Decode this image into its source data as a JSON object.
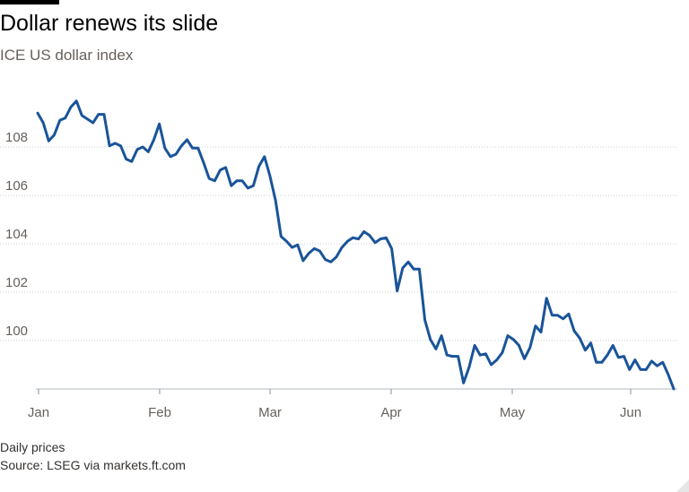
{
  "header": {
    "title": "Dollar renews its slide",
    "subtitle": "ICE US dollar index"
  },
  "footer": {
    "note": "Daily prices",
    "source": "Source: LSEG via markets.ft.com"
  },
  "colors": {
    "line": "#1a5499",
    "gridline": "#c9cfd8",
    "axis_text": "#66605c",
    "title": "#000000"
  },
  "chart_data": {
    "type": "line",
    "title": "Dollar renews its slide",
    "subtitle": "ICE US dollar index",
    "xlabel": "",
    "ylabel": "",
    "x_ticks": [
      "Jan",
      "Feb",
      "Mar",
      "Apr",
      "May",
      "Jun"
    ],
    "y_ticks": [
      100,
      102,
      104,
      106,
      108
    ],
    "ylim": [
      98,
      110
    ],
    "grid": true,
    "legend": "none",
    "series": [
      {
        "values": [
          109.4,
          109.0,
          108.25,
          108.5,
          109.1,
          109.2,
          109.65,
          109.9,
          109.3,
          109.15,
          109.0,
          109.35,
          109.35,
          108.05,
          108.15,
          108.05,
          107.5,
          107.4,
          107.9,
          108.0,
          107.8,
          108.3,
          108.95,
          107.95,
          107.6,
          107.7,
          108.05,
          108.3,
          107.95,
          107.95,
          107.35,
          106.7,
          106.6,
          107.05,
          107.15,
          106.4,
          106.6,
          106.6,
          106.3,
          106.4,
          107.2,
          107.6,
          106.8,
          105.8,
          104.3,
          104.1,
          103.85,
          103.95,
          103.3,
          103.6,
          103.8,
          103.7,
          103.35,
          103.25,
          103.45,
          103.85,
          104.1,
          104.25,
          104.2,
          104.5,
          104.35,
          104.05,
          104.2,
          104.25,
          103.8,
          102.05,
          103.0,
          103.25,
          102.95,
          102.95,
          100.85,
          100.05,
          99.65,
          100.2,
          99.4,
          99.35,
          99.35,
          98.25,
          98.9,
          99.8,
          99.4,
          99.45,
          99.0,
          99.2,
          99.5,
          100.2,
          100.05,
          99.8,
          99.25,
          99.7,
          100.6,
          100.35,
          101.75,
          101.05,
          101.05,
          100.9,
          101.1,
          100.4,
          100.1,
          99.6,
          99.9,
          99.1,
          99.1,
          99.4,
          99.8,
          99.3,
          99.35,
          98.8,
          99.2,
          98.8,
          98.8,
          99.15,
          98.95,
          99.1,
          98.6,
          98.0
        ]
      }
    ]
  }
}
